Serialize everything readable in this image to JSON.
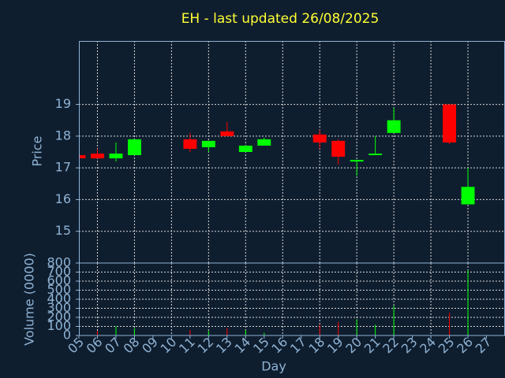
{
  "chart_data": [
    {
      "type": "candlestick",
      "title": "EH - last updated 26/08/2025",
      "y_label": "Price",
      "x": [
        5,
        6,
        7,
        8,
        11,
        12,
        13,
        14,
        15,
        18,
        19,
        20,
        21,
        22,
        25,
        26
      ],
      "open": [
        17.4,
        17.45,
        17.3,
        17.4,
        17.9,
        17.65,
        18.15,
        17.5,
        17.7,
        18.05,
        17.85,
        17.2,
        17.4,
        18.1,
        19.0,
        15.85
      ],
      "high": [
        17.4,
        17.6,
        17.8,
        17.9,
        18.1,
        17.85,
        18.45,
        17.7,
        17.95,
        18.2,
        17.9,
        17.25,
        18.0,
        18.9,
        19.0,
        17.0
      ],
      "low": [
        17.3,
        17.3,
        17.2,
        17.4,
        17.5,
        17.5,
        18.0,
        17.5,
        17.7,
        17.6,
        17.1,
        16.75,
        17.4,
        18.1,
        17.75,
        15.85
      ],
      "close": [
        17.3,
        17.3,
        17.45,
        17.9,
        17.6,
        17.85,
        18.0,
        17.7,
        17.9,
        17.8,
        17.35,
        17.25,
        17.45,
        18.5,
        17.8,
        16.4
      ],
      "up_color": "#00ff00",
      "down_color": "#ff0000",
      "xlim": [
        5,
        28
      ],
      "ylim": [
        14,
        21
      ],
      "yticks": [
        15,
        16,
        17,
        18,
        19
      ],
      "grid": true
    },
    {
      "type": "bar",
      "x_label": "Day",
      "y_label": "Volume (0000)",
      "x": [
        5,
        6,
        7,
        8,
        11,
        12,
        13,
        14,
        15,
        18,
        19,
        20,
        21,
        22,
        25,
        26
      ],
      "values": [
        10,
        50,
        100,
        80,
        60,
        50,
        80,
        60,
        30,
        120,
        150,
        180,
        120,
        330,
        250,
        720
      ],
      "xlim": [
        5,
        28
      ],
      "xticks": [
        {
          "value": 5,
          "label": "05"
        },
        {
          "value": 6,
          "label": "06"
        },
        {
          "value": 7,
          "label": "07"
        },
        {
          "value": 8,
          "label": "08"
        },
        {
          "value": 9,
          "label": "09"
        },
        10,
        11,
        12,
        13,
        14,
        15,
        16,
        17,
        18,
        19,
        20,
        21,
        22,
        23,
        24,
        25,
        26,
        27
      ],
      "ylim": [
        0,
        800
      ],
      "yticks": [
        0,
        100,
        200,
        300,
        400,
        500,
        600,
        700,
        800
      ],
      "grid": true
    }
  ]
}
